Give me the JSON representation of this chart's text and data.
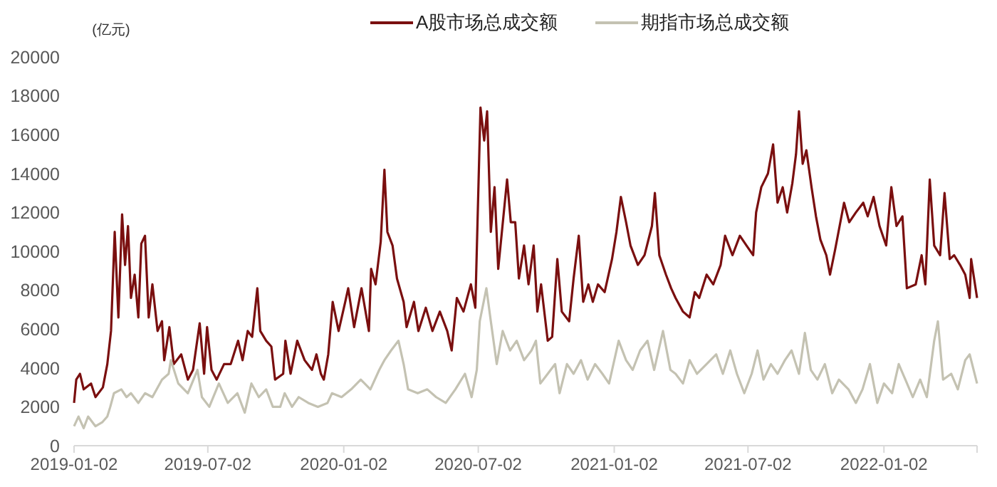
{
  "chart_data": {
    "type": "line",
    "ylabel": "(亿元)",
    "legend": "top",
    "grid": false,
    "marker": "none",
    "line_style": "solid",
    "xlim": [
      "2019-01-02",
      "2022-05-08"
    ],
    "xticks": [
      "2019-01-02",
      "2019-07-02",
      "2020-01-02",
      "2020-07-02",
      "2021-01-02",
      "2021-07-02",
      "2022-01-02"
    ],
    "ylim": [
      0,
      20000
    ],
    "yticks": [
      0,
      2000,
      4000,
      6000,
      8000,
      10000,
      12000,
      14000,
      16000,
      18000,
      20000
    ],
    "series": [
      {
        "name": "A股市场总成交额",
        "color": "#7a0f0f",
        "x": [
          "2019-01-02",
          "2019-01-05",
          "2019-01-10",
          "2019-01-15",
          "2019-01-25",
          "2019-01-31",
          "2019-02-10",
          "2019-02-16",
          "2019-02-21",
          "2019-02-26",
          "2019-03-03",
          "2019-03-08",
          "2019-03-12",
          "2019-03-16",
          "2019-03-20",
          "2019-03-25",
          "2019-03-30",
          "2019-04-03",
          "2019-04-08",
          "2019-04-13",
          "2019-04-18",
          "2019-04-25",
          "2019-05-01",
          "2019-05-04",
          "2019-05-11",
          "2019-05-17",
          "2019-05-27",
          "2019-06-05",
          "2019-06-12",
          "2019-06-21",
          "2019-06-27",
          "2019-07-01",
          "2019-07-07",
          "2019-07-14",
          "2019-07-24",
          "2019-08-02",
          "2019-08-12",
          "2019-08-18",
          "2019-08-25",
          "2019-08-31",
          "2019-09-07",
          "2019-09-11",
          "2019-09-19",
          "2019-09-26",
          "2019-10-01",
          "2019-10-12",
          "2019-10-15",
          "2019-10-22",
          "2019-10-31",
          "2019-11-10",
          "2019-11-20",
          "2019-11-26",
          "2019-12-02",
          "2019-12-06",
          "2019-12-12",
          "2019-12-18",
          "2019-12-26",
          "2020-01-04",
          "2020-01-08",
          "2020-01-16",
          "2020-01-26",
          "2020-02-05",
          "2020-02-08",
          "2020-02-14",
          "2020-02-21",
          "2020-02-26",
          "2020-03-01",
          "2020-03-08",
          "2020-03-14",
          "2020-03-23",
          "2020-03-27",
          "2020-04-06",
          "2020-04-12",
          "2020-04-22",
          "2020-05-01",
          "2020-05-11",
          "2020-05-21",
          "2020-05-27",
          "2020-06-03",
          "2020-06-12",
          "2020-06-22",
          "2020-06-28",
          "2020-07-05",
          "2020-07-10",
          "2020-07-14",
          "2020-07-19",
          "2020-07-24",
          "2020-07-29",
          "2020-08-10",
          "2020-08-15",
          "2020-08-21",
          "2020-08-26",
          "2020-09-02",
          "2020-09-08",
          "2020-09-15",
          "2020-09-20",
          "2020-09-25",
          "2020-10-04",
          "2020-10-10",
          "2020-10-17",
          "2020-10-23",
          "2020-11-02",
          "2020-11-08",
          "2020-11-15",
          "2020-11-21",
          "2020-11-28",
          "2020-12-04",
          "2020-12-11",
          "2020-12-20",
          "2020-12-30",
          "2021-01-05",
          "2021-01-11",
          "2021-01-18",
          "2021-01-24",
          "2021-02-03",
          "2021-02-12",
          "2021-02-22",
          "2021-02-26",
          "2021-03-04",
          "2021-03-13",
          "2021-03-20",
          "2021-03-26",
          "2021-04-05",
          "2021-04-14",
          "2021-04-21",
          "2021-04-27",
          "2021-05-07",
          "2021-05-16",
          "2021-05-26",
          "2021-06-01",
          "2021-06-11",
          "2021-06-21",
          "2021-06-30",
          "2021-07-09",
          "2021-07-13",
          "2021-07-20",
          "2021-07-29",
          "2021-08-05",
          "2021-08-11",
          "2021-08-18",
          "2021-08-24",
          "2021-08-31",
          "2021-09-05",
          "2021-09-09",
          "2021-09-14",
          "2021-09-19",
          "2021-09-26",
          "2021-10-02",
          "2021-10-08",
          "2021-10-16",
          "2021-10-21",
          "2021-10-28",
          "2021-11-03",
          "2021-11-09",
          "2021-11-16",
          "2021-11-25",
          "2021-12-05",
          "2021-12-11",
          "2021-12-19",
          "2021-12-27",
          "2022-01-05",
          "2022-01-12",
          "2022-01-19",
          "2022-01-27",
          "2022-02-02",
          "2022-02-14",
          "2022-02-22",
          "2022-02-27",
          "2022-03-05",
          "2022-03-11",
          "2022-03-19",
          "2022-03-25",
          "2022-04-01",
          "2022-04-07",
          "2022-04-15",
          "2022-04-22",
          "2022-04-28",
          "2022-04-30",
          "2022-05-08"
        ],
        "values": [
          2200,
          3400,
          3700,
          2900,
          3200,
          2500,
          3000,
          4200,
          5900,
          11000,
          6600,
          11900,
          9300,
          11300,
          7600,
          8800,
          6600,
          10400,
          10800,
          6600,
          8300,
          5900,
          6400,
          4400,
          6100,
          4200,
          4700,
          3400,
          3900,
          6300,
          3700,
          6100,
          3900,
          3400,
          4200,
          4200,
          5400,
          4400,
          5900,
          5600,
          8100,
          5900,
          5400,
          5100,
          3400,
          3700,
          5400,
          3700,
          5400,
          4400,
          3900,
          4700,
          3700,
          3400,
          4700,
          7400,
          5900,
          7400,
          8100,
          6100,
          8100,
          5900,
          9100,
          8300,
          10500,
          14200,
          11000,
          10300,
          8600,
          7400,
          6100,
          7400,
          5900,
          7100,
          5900,
          6900,
          5900,
          4900,
          7600,
          6900,
          8300,
          7100,
          17400,
          15700,
          17200,
          11000,
          13300,
          9100,
          13700,
          11500,
          11500,
          8600,
          10300,
          8300,
          10300,
          6900,
          8300,
          5400,
          5600,
          9600,
          6900,
          6400,
          8600,
          10800,
          7400,
          8300,
          7400,
          8300,
          7900,
          9600,
          11000,
          12800,
          11500,
          10300,
          9300,
          9800,
          11300,
          13000,
          9800,
          8800,
          8100,
          7600,
          6900,
          6600,
          7900,
          7600,
          8800,
          8300,
          9300,
          10800,
          9800,
          10800,
          10300,
          9800,
          12000,
          13300,
          14000,
          15500,
          12500,
          13300,
          12000,
          13500,
          15000,
          17200,
          14500,
          15200,
          13300,
          11800,
          10600,
          9800,
          8800,
          10100,
          11300,
          12500,
          11500,
          12000,
          12500,
          11800,
          12800,
          11300,
          10300,
          13300,
          11300,
          11800,
          8100,
          8300,
          9800,
          8300,
          13700,
          10300,
          9800,
          13000,
          9600,
          9800,
          9300,
          8800,
          7600,
          9600,
          7600
        ]
      },
      {
        "name": "期指市场总成交额",
        "color": "#c4c2b2",
        "x": [
          "2019-01-02",
          "2019-01-08",
          "2019-01-15",
          "2019-01-21",
          "2019-01-31",
          "2019-02-09",
          "2019-02-16",
          "2019-02-20",
          "2019-02-25",
          "2019-03-07",
          "2019-03-14",
          "2019-03-20",
          "2019-03-30",
          "2019-04-08",
          "2019-04-18",
          "2019-05-01",
          "2019-05-10",
          "2019-05-13",
          "2019-05-23",
          "2019-06-05",
          "2019-06-18",
          "2019-06-24",
          "2019-07-04",
          "2019-07-17",
          "2019-07-29",
          "2019-08-11",
          "2019-08-21",
          "2019-08-30",
          "2019-09-09",
          "2019-09-19",
          "2019-09-28",
          "2019-10-08",
          "2019-10-14",
          "2019-10-24",
          "2019-11-02",
          "2019-11-15",
          "2019-11-28",
          "2019-12-11",
          "2019-12-17",
          "2019-12-30",
          "2020-01-12",
          "2020-01-25",
          "2020-02-07",
          "2020-02-19",
          "2020-02-26",
          "2020-03-06",
          "2020-03-16",
          "2020-03-23",
          "2020-03-29",
          "2020-04-11",
          "2020-04-24",
          "2020-05-06",
          "2020-05-19",
          "2020-06-01",
          "2020-06-14",
          "2020-06-23",
          "2020-06-30",
          "2020-07-04",
          "2020-07-13",
          "2020-07-19",
          "2020-07-27",
          "2020-08-04",
          "2020-08-14",
          "2020-08-23",
          "2020-09-02",
          "2020-09-12",
          "2020-09-18",
          "2020-09-24",
          "2020-10-04",
          "2020-10-14",
          "2020-10-20",
          "2020-10-30",
          "2020-11-08",
          "2020-11-18",
          "2020-11-27",
          "2020-12-07",
          "2020-12-17",
          "2020-12-26",
          "2021-01-08",
          "2021-01-18",
          "2021-01-27",
          "2021-02-06",
          "2021-02-16",
          "2021-02-25",
          "2021-03-09",
          "2021-03-19",
          "2021-03-26",
          "2021-04-05",
          "2021-04-14",
          "2021-04-24",
          "2021-05-07",
          "2021-05-20",
          "2021-05-29",
          "2021-06-08",
          "2021-06-17",
          "2021-06-27",
          "2021-07-07",
          "2021-07-15",
          "2021-07-23",
          "2021-08-02",
          "2021-08-11",
          "2021-08-21",
          "2021-08-30",
          "2021-09-09",
          "2021-09-17",
          "2021-09-25",
          "2021-10-04",
          "2021-10-14",
          "2021-10-24",
          "2021-11-02",
          "2021-11-15",
          "2021-11-25",
          "2021-12-04",
          "2021-12-14",
          "2021-12-24",
          "2022-01-02",
          "2022-01-13",
          "2022-01-22",
          "2022-01-31",
          "2022-02-10",
          "2022-02-20",
          "2022-03-01",
          "2022-03-11",
          "2022-03-16",
          "2022-03-23",
          "2022-04-03",
          "2022-04-12",
          "2022-04-22",
          "2022-04-28",
          "2022-05-08"
        ],
        "values": [
          1000,
          1500,
          900,
          1500,
          1000,
          1200,
          1500,
          2000,
          2700,
          2900,
          2500,
          2700,
          2200,
          2700,
          2500,
          3400,
          3700,
          4400,
          3200,
          2700,
          3900,
          2500,
          2000,
          3200,
          2200,
          2700,
          1700,
          3200,
          2500,
          2900,
          2000,
          2000,
          2700,
          2000,
          2500,
          2200,
          2000,
          2200,
          2700,
          2500,
          2900,
          3400,
          2900,
          3900,
          4400,
          4900,
          5400,
          4200,
          2900,
          2700,
          2900,
          2500,
          2200,
          2900,
          3700,
          2500,
          3900,
          6400,
          8100,
          6400,
          4200,
          5900,
          4900,
          5400,
          4400,
          4900,
          5400,
          3200,
          3700,
          4200,
          2700,
          4200,
          3700,
          4400,
          3400,
          4200,
          3700,
          3200,
          5400,
          4400,
          3900,
          4900,
          5400,
          3900,
          5900,
          3900,
          3700,
          3200,
          4400,
          3700,
          4200,
          4700,
          3700,
          4900,
          3700,
          2700,
          3700,
          4900,
          3400,
          4200,
          3700,
          4400,
          4900,
          3700,
          5800,
          3900,
          3400,
          4200,
          2700,
          3400,
          2900,
          2200,
          2900,
          4200,
          2200,
          3200,
          2700,
          4200,
          3400,
          2500,
          3400,
          2500,
          5400,
          6400,
          3400,
          3700,
          2900,
          4400,
          4700,
          3200
        ]
      }
    ]
  }
}
